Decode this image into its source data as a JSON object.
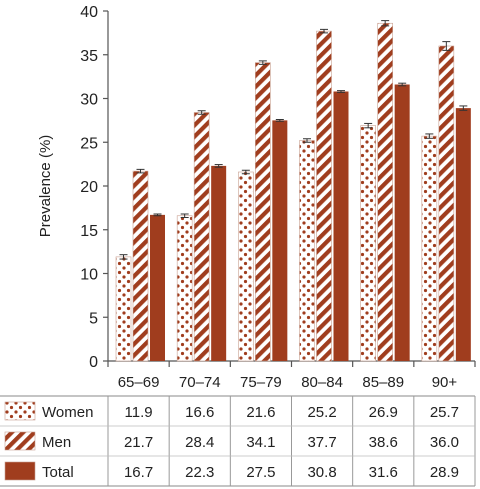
{
  "chart_data": {
    "type": "bar",
    "ylabel": "Prevalence (%)",
    "ylim": [
      0,
      40
    ],
    "yticks": [
      "0",
      "5",
      "10",
      "15",
      "20",
      "25",
      "30",
      "35",
      "40"
    ],
    "categories": [
      "65–69",
      "70–74",
      "75–79",
      "80–84",
      "85–89",
      "90+"
    ],
    "series": [
      {
        "name": "Women",
        "pattern": "dots",
        "values": [
          11.9,
          16.6,
          21.6,
          25.2,
          26.9,
          25.7
        ],
        "labels": [
          "11.9",
          "16.6",
          "21.6",
          "25.2",
          "26.9",
          "25.7"
        ],
        "error": [
          0.25,
          0.2,
          0.2,
          0.2,
          0.25,
          0.25
        ]
      },
      {
        "name": "Men",
        "pattern": "diagonal-stripes",
        "values": [
          21.7,
          28.4,
          34.1,
          37.7,
          38.6,
          36.0
        ],
        "labels": [
          "21.7",
          "28.4",
          "34.1",
          "37.7",
          "38.6",
          "36.0"
        ],
        "error": [
          0.2,
          0.2,
          0.2,
          0.2,
          0.3,
          0.5
        ]
      },
      {
        "name": "Total",
        "pattern": "solid",
        "values": [
          16.7,
          22.3,
          27.5,
          30.8,
          31.6,
          28.9
        ],
        "labels": [
          "16.7",
          "22.3",
          "27.5",
          "30.8",
          "31.6",
          "28.9"
        ],
        "error": [
          0.1,
          0.15,
          0.1,
          0.1,
          0.15,
          0.25
        ]
      }
    ],
    "grid": false,
    "legend": "data table below chart",
    "colors": {
      "bar": "#a03d1e",
      "edge": "#8a3a20",
      "axis": "#555555",
      "text": "#222222"
    }
  }
}
